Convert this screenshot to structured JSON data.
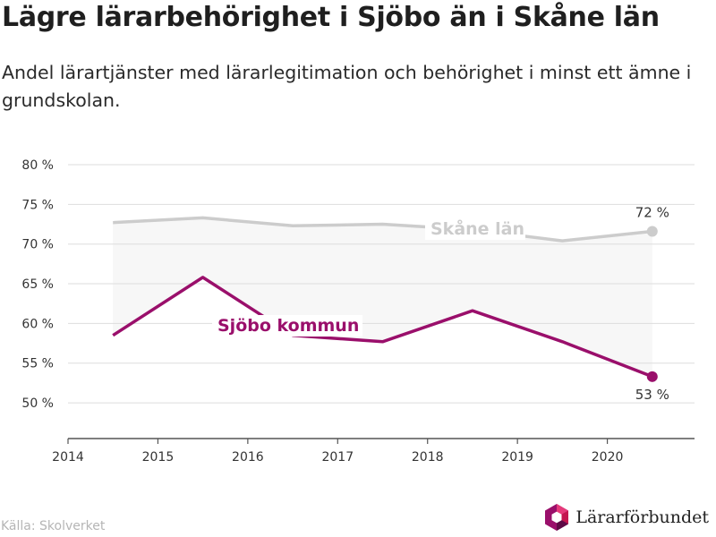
{
  "title": "Lägre lärarbehörighet i Sjöbo än i Skåne län",
  "subtitle": "Andel lärartjänster med lärarlegitimation och behörighet i minst ett ämne i grundskolan.",
  "source": "Källa: Skolverket",
  "brand": {
    "name": "Lärarförbundet",
    "logo_icon": "hexagon-logo-icon"
  },
  "colors": {
    "sjobo": "#9a0f6b",
    "skane": "#cccccc",
    "band": "#f7f7f7",
    "grid": "#dddddd",
    "axis": "#555555",
    "text": "#333333"
  },
  "chart_data": {
    "type": "line",
    "title": "Lägre lärarbehörighet i Sjöbo än i Skåne län",
    "subtitle": "Andel lärartjänster med lärarlegitimation och behörighet i minst ett ämne i grundskolan.",
    "x": [
      2014.5,
      2015.5,
      2016.5,
      2017.5,
      2018.5,
      2019.5,
      2020.5
    ],
    "xlim": [
      2014,
      2020.97
    ],
    "xticks": [
      2014,
      2015,
      2016,
      2017,
      2018,
      2019,
      2020
    ],
    "ylim": [
      45.5,
      80
    ],
    "yticks": [
      50,
      55,
      60,
      65,
      70,
      75,
      80
    ],
    "ytick_labels": [
      "50 %",
      "55 %",
      "60 %",
      "65 %",
      "70 %",
      "75 %",
      "80 %"
    ],
    "xlabel": "",
    "ylabel": "",
    "grid": true,
    "series": [
      {
        "name": "Skåne län",
        "values": [
          72.7,
          73.3,
          72.3,
          72.5,
          71.8,
          70.4,
          71.6
        ],
        "end_label": "72 %"
      },
      {
        "name": "Sjöbo kommun",
        "values": [
          58.5,
          65.8,
          58.5,
          57.7,
          61.6,
          57.7,
          53.3
        ],
        "end_label": "53 %"
      }
    ],
    "annotations": [
      "Skåne län",
      "Sjöbo kommun",
      "72 %",
      "53 %"
    ]
  }
}
